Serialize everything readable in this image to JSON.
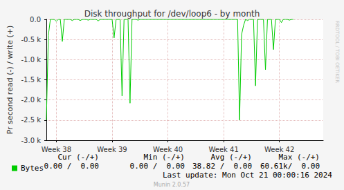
{
  "chart_data": {
    "type": "line",
    "title": "Disk throughput for /dev/loop6 - by month",
    "y_label": "Pr second read (-) / write (+)",
    "categories": [
      null,
      null,
      null,
      null,
      null,
      "Week 38",
      null,
      null,
      null,
      null,
      null,
      null,
      null,
      null,
      null,
      null,
      null,
      null,
      null,
      null,
      null,
      null,
      null,
      null,
      null,
      null,
      null,
      null,
      null,
      null,
      null,
      null,
      null,
      "Week 39",
      null,
      null,
      null,
      null,
      null,
      null,
      null,
      null,
      null,
      null,
      null,
      null,
      null,
      null,
      null,
      null,
      null,
      null,
      null,
      null,
      null,
      null,
      null,
      null,
      null,
      null,
      null,
      "Week 40",
      null,
      null,
      null,
      null,
      null,
      null,
      null,
      null,
      null,
      null,
      null,
      null,
      null,
      null,
      null,
      null,
      null,
      null,
      null,
      null,
      null,
      null,
      null,
      null,
      null,
      null,
      null,
      "Week 41",
      null,
      null,
      null,
      null,
      null,
      null,
      null,
      null,
      null,
      null,
      null,
      null,
      null,
      null,
      null,
      null,
      null,
      null,
      null,
      null,
      null,
      null,
      null,
      null,
      null,
      null,
      null,
      "Week 42",
      null,
      null,
      null,
      null,
      null,
      null,
      null,
      null,
      null,
      null,
      null,
      null,
      null,
      null,
      null,
      null,
      null,
      null,
      null,
      null,
      null,
      null
    ],
    "series": [
      {
        "name": "Bytes",
        "color": "#00cc00",
        "values": [
          -2500,
          -400,
          0,
          0,
          0,
          -50,
          0,
          0,
          -550,
          0,
          0,
          0,
          0,
          -30,
          0,
          0,
          0,
          -30,
          0,
          0,
          0,
          -20,
          0,
          0,
          0,
          0,
          -40,
          0,
          0,
          0,
          0,
          0,
          0,
          0,
          -460,
          0,
          0,
          0,
          -1900,
          0,
          0,
          0,
          -2080,
          0,
          0,
          0,
          -20,
          0,
          0,
          0,
          0,
          0,
          0,
          0,
          0,
          0,
          0,
          0,
          0,
          0,
          0,
          0,
          0,
          0,
          0,
          0,
          0,
          0,
          0,
          0,
          0,
          0,
          0,
          0,
          0,
          0,
          0,
          0,
          0,
          0,
          0,
          0,
          0,
          0,
          0,
          0,
          0,
          0,
          0,
          0,
          0,
          0,
          0,
          0,
          0,
          0,
          0,
          -2500,
          -380,
          -150,
          0,
          -30,
          0,
          0,
          0,
          -1650,
          0,
          0,
          0,
          0,
          -1250,
          0,
          0,
          0,
          -750,
          0,
          0,
          0,
          -80,
          0,
          0,
          0,
          -20,
          0,
          0,
          null,
          null,
          null,
          null,
          null,
          null,
          null,
          null,
          null,
          null,
          null,
          null,
          null,
          null,
          null
        ]
      }
    ],
    "ylim": [
      -3000,
      0
    ],
    "yticks": [
      {
        "value": -3000,
        "label": "-3.0 k"
      },
      {
        "value": -2500,
        "label": "-2.5 k"
      },
      {
        "value": -2000,
        "label": "-2.0 k"
      },
      {
        "value": -1500,
        "label": "-1.5 k"
      },
      {
        "value": -1000,
        "label": "-1.0 k"
      },
      {
        "value": -500,
        "label": "-0.5 k"
      },
      {
        "value": 0,
        "label": "0.0"
      }
    ],
    "grid": true,
    "legend": "bottom-left",
    "summary": {
      "columns": [
        "Cur (-/+)",
        "Min (-/+)",
        "Avg (-/+)",
        "Max (-/+)"
      ],
      "cells": [
        "0.00 /  0.00",
        "0.00 /  0.00",
        "38.82 /  0.00",
        "60.61k/  0.00"
      ]
    },
    "last_update": "Last update: Mon Oct 21 00:00:16 2024",
    "footer": "Munin 2.0.57",
    "side_text": "RRDTOOL / TOBI OETIKER"
  }
}
